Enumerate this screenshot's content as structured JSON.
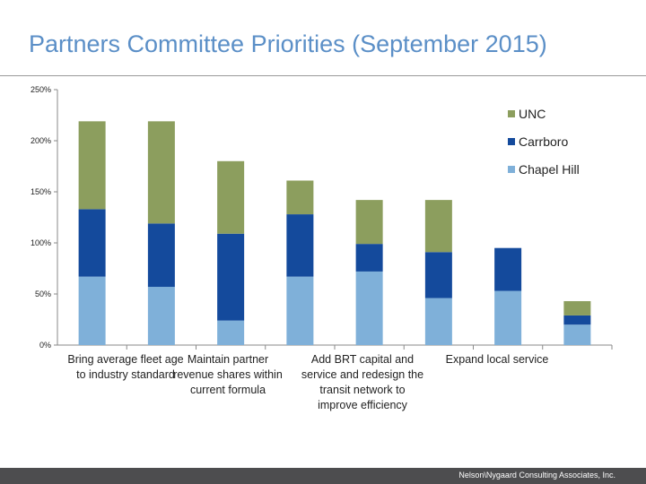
{
  "slide": {
    "title": "Partners Committee Priorities (September 2015)",
    "footer": "Nelson\\Nygaard Consulting Associates, Inc."
  },
  "colors": {
    "title": "#5b8fc7",
    "unc": "#8c9e5e",
    "carrboro": "#144a9c",
    "chapel_hill": "#7fb0d9",
    "footer_bar": "#4d4d4f"
  },
  "chart_data": {
    "type": "bar",
    "stacked": true,
    "title": "",
    "xlabel": "",
    "ylabel": "",
    "ylim": [
      0,
      250
    ],
    "y_unit": "%",
    "y_ticks": [
      "0%",
      "50%",
      "100%",
      "150%",
      "200%",
      "250%"
    ],
    "grid": false,
    "legend_position": "right",
    "category_labels": [
      {
        "lines": [
          "Bring average fleet age",
          "to industry standard"
        ]
      },
      {
        "lines": [
          "Maintain partner",
          "revenue shares within",
          "current formula"
        ]
      },
      {
        "lines": [
          "Add BRT capital and",
          "service and redesign the",
          "transit network to",
          "improve efficiency"
        ]
      },
      {
        "lines": [
          "Expand local service"
        ]
      }
    ],
    "bar_count": 8,
    "series": [
      {
        "name": "Chapel Hill",
        "color": "#7fb0d9",
        "values": [
          67,
          57,
          24,
          67,
          72,
          46,
          53,
          20
        ]
      },
      {
        "name": "Carrboro",
        "color": "#144a9c",
        "values": [
          66,
          62,
          85,
          61,
          27,
          45,
          42,
          9
        ]
      },
      {
        "name": "UNC",
        "color": "#8c9e5e",
        "values": [
          86,
          100,
          71,
          33,
          43,
          51,
          0,
          14
        ]
      }
    ],
    "legend_order": [
      "UNC",
      "Carrboro",
      "Chapel Hill"
    ]
  }
}
